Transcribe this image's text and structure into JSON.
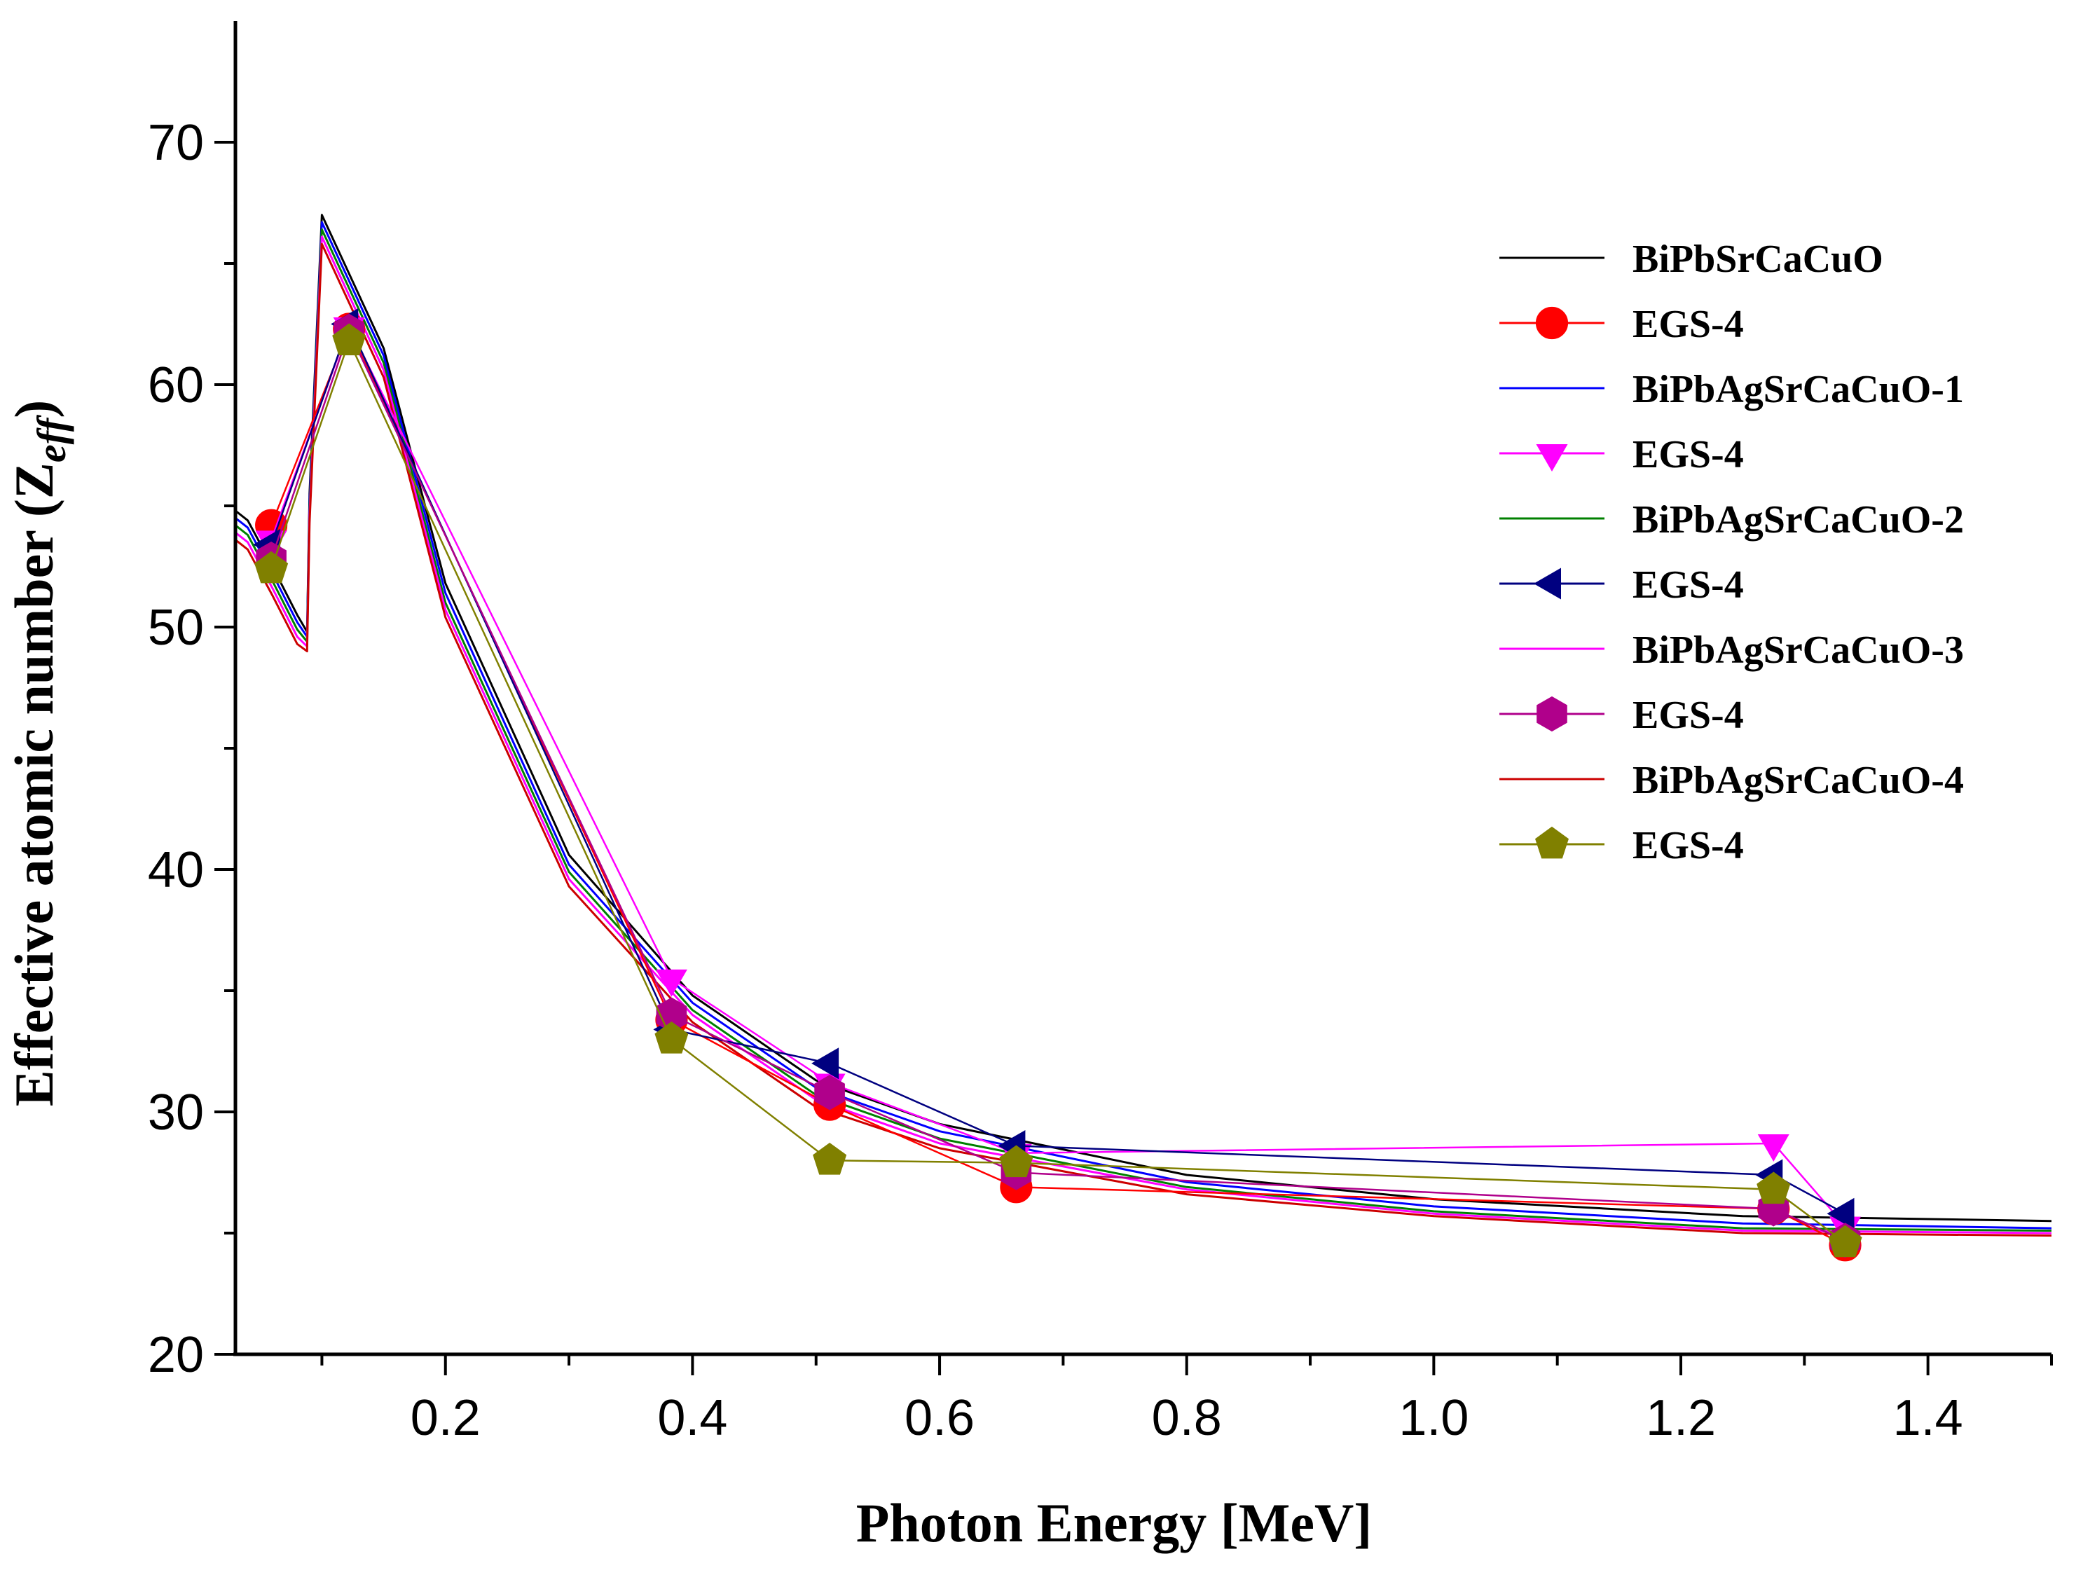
{
  "chart_data": {
    "type": "line",
    "title": "",
    "xlabel": "Photon Energy [MeV]",
    "ylabel_main": "Effective atomic number (Z",
    "ylabel_sub": "eff",
    "ylabel_close": ")",
    "xlim": [
      0.03,
      1.5
    ],
    "ylim": [
      20,
      75
    ],
    "xticks": [
      0.2,
      0.4,
      0.6,
      0.8,
      1.0,
      1.2,
      1.4
    ],
    "xtick_labels": [
      "0.2",
      "0.4",
      "0.6",
      "0.8",
      "1.0",
      "1.2",
      "1.4"
    ],
    "yticks": [
      20,
      30,
      40,
      50,
      60,
      70
    ],
    "ytick_labels": [
      "20",
      "30",
      "40",
      "50",
      "60",
      "70"
    ],
    "legend_position": "top-right",
    "grid": false,
    "x": [
      0.03,
      0.04,
      0.06,
      0.08,
      0.088,
      0.09,
      0.1,
      0.15,
      0.2,
      0.3,
      0.4,
      0.5,
      0.6,
      0.8,
      1.0,
      1.25,
      1.5
    ],
    "line_series": [
      {
        "name": "BiPbSrCaCuO",
        "color": "#000000",
        "values": [
          54.8,
          54.4,
          52.5,
          50.5,
          49.8,
          55.5,
          67.0,
          61.5,
          51.8,
          40.6,
          34.8,
          31.3,
          29.5,
          27.4,
          26.4,
          25.7,
          25.5
        ]
      },
      {
        "name": "BiPbAgSrCaCuO-1",
        "color": "#0000ff",
        "values": [
          54.5,
          54.1,
          52.2,
          50.2,
          49.6,
          55.2,
          66.7,
          61.2,
          51.4,
          40.2,
          34.5,
          31.0,
          29.2,
          27.1,
          26.1,
          25.4,
          25.2
        ]
      },
      {
        "name": "BiPbAgSrCaCuO-2",
        "color": "#008000",
        "values": [
          54.2,
          53.8,
          51.9,
          49.9,
          49.4,
          54.9,
          66.4,
          60.9,
          51.0,
          39.9,
          34.2,
          30.7,
          28.9,
          26.9,
          25.9,
          25.2,
          25.1
        ]
      },
      {
        "name": "BiPbAgSrCaCuO-3",
        "color": "#ff00ff",
        "values": [
          53.9,
          53.5,
          51.6,
          49.6,
          49.2,
          54.6,
          66.1,
          60.6,
          50.7,
          39.6,
          34.0,
          30.5,
          28.7,
          26.8,
          25.8,
          25.1,
          25.0
        ]
      },
      {
        "name": "BiPbAgSrCaCuO-4",
        "color": "#cc0000",
        "values": [
          53.6,
          53.2,
          51.3,
          49.3,
          49.0,
          54.3,
          65.8,
          60.3,
          50.4,
          39.3,
          33.7,
          30.2,
          28.5,
          26.6,
          25.7,
          25.0,
          24.9
        ]
      }
    ],
    "marker_series": [
      {
        "name": "EGS-4",
        "color": "#ff0000",
        "marker": "circle",
        "x": [
          0.059,
          0.122,
          0.383,
          0.511,
          0.662,
          1.275,
          1.333
        ],
        "values": [
          54.2,
          62.3,
          33.8,
          30.3,
          26.9,
          26.0,
          24.5
        ]
      },
      {
        "name": "EGS-4",
        "color": "#ff00ff",
        "marker": "triangle-down",
        "x": [
          0.059,
          0.122,
          0.383,
          0.511,
          0.662,
          1.275,
          1.333
        ],
        "values": [
          53.6,
          62.4,
          35.5,
          31.2,
          28.3,
          28.7,
          25.3
        ]
      },
      {
        "name": "EGS-4",
        "color": "#000080",
        "marker": "triangle-left",
        "x": [
          0.059,
          0.122,
          0.383,
          0.511,
          0.662,
          1.275,
          1.333
        ],
        "values": [
          53.4,
          62.5,
          33.4,
          32.0,
          28.6,
          27.4,
          25.8
        ]
      },
      {
        "name": "EGS-4",
        "color": "#b0008b",
        "marker": "hexagon",
        "x": [
          0.059,
          0.122,
          0.383,
          0.511,
          0.662,
          1.275,
          1.333
        ],
        "values": [
          52.8,
          62.2,
          34.0,
          30.8,
          27.5,
          26.0,
          24.7
        ]
      },
      {
        "name": "EGS-4",
        "color": "#808000",
        "marker": "pentagon",
        "x": [
          0.059,
          0.122,
          0.383,
          0.511,
          0.662,
          1.275,
          1.333
        ],
        "values": [
          52.4,
          61.8,
          33.0,
          28.0,
          27.9,
          26.8,
          24.6
        ]
      }
    ],
    "legend_order": [
      {
        "kind": "line",
        "series": 0
      },
      {
        "kind": "marker",
        "series": 0
      },
      {
        "kind": "line",
        "series": 1
      },
      {
        "kind": "marker",
        "series": 1
      },
      {
        "kind": "line",
        "series": 2
      },
      {
        "kind": "marker",
        "series": 2
      },
      {
        "kind": "line",
        "series": 3
      },
      {
        "kind": "marker",
        "series": 3
      },
      {
        "kind": "line",
        "series": 4
      },
      {
        "kind": "marker",
        "series": 4
      }
    ]
  }
}
